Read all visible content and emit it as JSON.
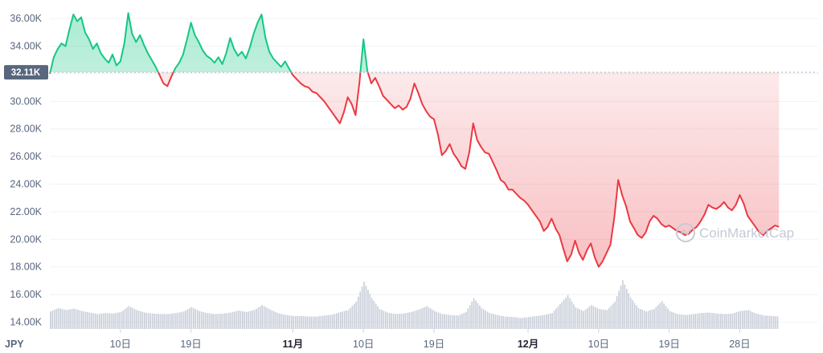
{
  "chart_data": {
    "type": "area",
    "currency": "JPY",
    "reference_value": 32110,
    "reference_label": "32.11K",
    "ylim": [
      13500,
      37000
    ],
    "yticks": [
      {
        "value": 14000,
        "label": "14.00K"
      },
      {
        "value": 16000,
        "label": "16.00K"
      },
      {
        "value": 18000,
        "label": "18.00K"
      },
      {
        "value": 20000,
        "label": "20.00K"
      },
      {
        "value": 22000,
        "label": "22.00K"
      },
      {
        "value": 24000,
        "label": "24.00K"
      },
      {
        "value": 26000,
        "label": "26.00K"
      },
      {
        "value": 28000,
        "label": "28.00K"
      },
      {
        "value": 30000,
        "label": "30.00K"
      },
      {
        "value": 32000,
        "label": "32.00K"
      },
      {
        "value": 34000,
        "label": "34.00K"
      },
      {
        "value": 36000,
        "label": "36.00K"
      }
    ],
    "xlim": [
      0,
      98
    ],
    "xticks": [
      {
        "x": 9,
        "label": "10日",
        "bold": false
      },
      {
        "x": 18,
        "label": "19日",
        "bold": false
      },
      {
        "x": 31,
        "label": "11月",
        "bold": true
      },
      {
        "x": 40,
        "label": "10日",
        "bold": false
      },
      {
        "x": 49,
        "label": "19日",
        "bold": false
      },
      {
        "x": 61,
        "label": "12月",
        "bold": true
      },
      {
        "x": 70,
        "label": "10日",
        "bold": false
      },
      {
        "x": 79,
        "label": "19日",
        "bold": false
      },
      {
        "x": 88,
        "label": "28日",
        "bold": false
      }
    ],
    "price_series": [
      [
        0,
        32000
      ],
      [
        0.5,
        33200
      ],
      [
        1,
        33800
      ],
      [
        1.5,
        34200
      ],
      [
        2,
        34000
      ],
      [
        2.5,
        35200
      ],
      [
        3,
        36300
      ],
      [
        3.5,
        35800
      ],
      [
        4,
        36100
      ],
      [
        4.5,
        35000
      ],
      [
        5,
        34500
      ],
      [
        5.5,
        33800
      ],
      [
        6,
        34200
      ],
      [
        6.5,
        33500
      ],
      [
        7,
        33100
      ],
      [
        7.5,
        32800
      ],
      [
        8,
        33400
      ],
      [
        8.5,
        32600
      ],
      [
        9,
        32900
      ],
      [
        9.5,
        34200
      ],
      [
        10,
        36400
      ],
      [
        10.5,
        34900
      ],
      [
        11,
        34300
      ],
      [
        11.5,
        34800
      ],
      [
        12,
        34100
      ],
      [
        12.5,
        33500
      ],
      [
        13,
        33000
      ],
      [
        13.5,
        32500
      ],
      [
        14,
        31900
      ],
      [
        14.5,
        31300
      ],
      [
        15,
        31100
      ],
      [
        15.5,
        31800
      ],
      [
        16,
        32400
      ],
      [
        16.5,
        32800
      ],
      [
        17,
        33400
      ],
      [
        17.5,
        34500
      ],
      [
        18,
        35700
      ],
      [
        18.5,
        34800
      ],
      [
        19,
        34300
      ],
      [
        19.5,
        33700
      ],
      [
        20,
        33300
      ],
      [
        20.5,
        33100
      ],
      [
        21,
        32800
      ],
      [
        21.5,
        33200
      ],
      [
        22,
        32700
      ],
      [
        22.5,
        33500
      ],
      [
        23,
        34600
      ],
      [
        23.5,
        33800
      ],
      [
        24,
        33300
      ],
      [
        24.5,
        33600
      ],
      [
        25,
        33100
      ],
      [
        25.5,
        33900
      ],
      [
        26,
        34900
      ],
      [
        26.5,
        35700
      ],
      [
        27,
        36300
      ],
      [
        27.5,
        34600
      ],
      [
        28,
        33600
      ],
      [
        28.5,
        33100
      ],
      [
        29,
        32800
      ],
      [
        29.5,
        32500
      ],
      [
        30,
        32900
      ],
      [
        30.5,
        32400
      ],
      [
        31,
        31900
      ],
      [
        31.5,
        31600
      ],
      [
        32,
        31300
      ],
      [
        32.5,
        31100
      ],
      [
        33,
        31000
      ],
      [
        33.5,
        30700
      ],
      [
        34,
        30600
      ],
      [
        34.5,
        30300
      ],
      [
        35,
        30000
      ],
      [
        35.5,
        29600
      ],
      [
        36,
        29200
      ],
      [
        36.5,
        28800
      ],
      [
        37,
        28400
      ],
      [
        37.5,
        29200
      ],
      [
        38,
        30300
      ],
      [
        38.5,
        29800
      ],
      [
        39,
        29000
      ],
      [
        39.5,
        31400
      ],
      [
        40,
        34500
      ],
      [
        40.5,
        32200
      ],
      [
        41,
        31300
      ],
      [
        41.5,
        31700
      ],
      [
        42,
        31100
      ],
      [
        42.5,
        30400
      ],
      [
        43,
        30100
      ],
      [
        43.5,
        29800
      ],
      [
        44,
        29500
      ],
      [
        44.5,
        29700
      ],
      [
        45,
        29400
      ],
      [
        45.5,
        29600
      ],
      [
        46,
        30200
      ],
      [
        46.5,
        31300
      ],
      [
        47,
        30600
      ],
      [
        47.5,
        29800
      ],
      [
        48,
        29300
      ],
      [
        48.5,
        28900
      ],
      [
        49,
        28700
      ],
      [
        49.5,
        27600
      ],
      [
        50,
        26100
      ],
      [
        50.5,
        26400
      ],
      [
        51,
        26900
      ],
      [
        51.5,
        26200
      ],
      [
        52,
        25800
      ],
      [
        52.5,
        25300
      ],
      [
        53,
        25100
      ],
      [
        53.5,
        26300
      ],
      [
        54,
        28400
      ],
      [
        54.5,
        27200
      ],
      [
        55,
        26700
      ],
      [
        55.5,
        26300
      ],
      [
        56,
        26200
      ],
      [
        56.5,
        25600
      ],
      [
        57,
        25000
      ],
      [
        57.5,
        24300
      ],
      [
        58,
        24100
      ],
      [
        58.5,
        23600
      ],
      [
        59,
        23600
      ],
      [
        59.5,
        23300
      ],
      [
        60,
        23000
      ],
      [
        60.5,
        22800
      ],
      [
        61,
        22500
      ],
      [
        61.5,
        22100
      ],
      [
        62,
        21700
      ],
      [
        62.5,
        21300
      ],
      [
        63,
        20600
      ],
      [
        63.5,
        20900
      ],
      [
        64,
        21500
      ],
      [
        64.5,
        20800
      ],
      [
        65,
        20300
      ],
      [
        65.5,
        19300
      ],
      [
        66,
        18400
      ],
      [
        66.5,
        18900
      ],
      [
        67,
        19900
      ],
      [
        67.5,
        19000
      ],
      [
        68,
        18500
      ],
      [
        68.5,
        19200
      ],
      [
        69,
        19700
      ],
      [
        69.5,
        18700
      ],
      [
        70,
        18000
      ],
      [
        70.5,
        18400
      ],
      [
        71,
        19000
      ],
      [
        71.5,
        19600
      ],
      [
        72,
        21600
      ],
      [
        72.5,
        24300
      ],
      [
        73,
        23200
      ],
      [
        73.5,
        22400
      ],
      [
        74,
        21300
      ],
      [
        74.5,
        20800
      ],
      [
        75,
        20300
      ],
      [
        75.5,
        20100
      ],
      [
        76,
        20500
      ],
      [
        76.5,
        21300
      ],
      [
        77,
        21700
      ],
      [
        77.5,
        21500
      ],
      [
        78,
        21100
      ],
      [
        78.5,
        20900
      ],
      [
        79,
        21000
      ],
      [
        79.5,
        20800
      ],
      [
        80,
        20600
      ],
      [
        80.5,
        20500
      ],
      [
        81,
        20300
      ],
      [
        81.5,
        20400
      ],
      [
        82,
        20700
      ],
      [
        82.5,
        20900
      ],
      [
        83,
        21300
      ],
      [
        83.5,
        21800
      ],
      [
        84,
        22500
      ],
      [
        84.5,
        22300
      ],
      [
        85,
        22200
      ],
      [
        85.5,
        22400
      ],
      [
        86,
        22700
      ],
      [
        86.5,
        22300
      ],
      [
        87,
        22100
      ],
      [
        87.5,
        22500
      ],
      [
        88,
        23200
      ],
      [
        88.5,
        22600
      ],
      [
        89,
        21700
      ],
      [
        89.5,
        21300
      ],
      [
        90,
        20900
      ],
      [
        90.5,
        20500
      ],
      [
        91,
        20300
      ],
      [
        91.5,
        20600
      ],
      [
        92,
        20800
      ],
      [
        92.5,
        21000
      ],
      [
        93,
        20900
      ]
    ],
    "volume_series": [
      [
        0,
        0.35
      ],
      [
        1,
        0.42
      ],
      [
        2,
        0.38
      ],
      [
        3,
        0.41
      ],
      [
        4,
        0.36
      ],
      [
        5,
        0.33
      ],
      [
        6,
        0.3
      ],
      [
        7,
        0.32
      ],
      [
        8,
        0.31
      ],
      [
        9,
        0.34
      ],
      [
        10,
        0.46
      ],
      [
        11,
        0.38
      ],
      [
        12,
        0.33
      ],
      [
        13,
        0.31
      ],
      [
        14,
        0.3
      ],
      [
        15,
        0.3
      ],
      [
        16,
        0.32
      ],
      [
        17,
        0.35
      ],
      [
        18,
        0.44
      ],
      [
        19,
        0.36
      ],
      [
        20,
        0.32
      ],
      [
        21,
        0.3
      ],
      [
        22,
        0.31
      ],
      [
        23,
        0.33
      ],
      [
        24,
        0.37
      ],
      [
        25,
        0.34
      ],
      [
        26,
        0.38
      ],
      [
        27,
        0.48
      ],
      [
        28,
        0.39
      ],
      [
        29,
        0.32
      ],
      [
        30,
        0.28
      ],
      [
        31,
        0.26
      ],
      [
        32,
        0.26
      ],
      [
        33,
        0.25
      ],
      [
        34,
        0.25
      ],
      [
        35,
        0.27
      ],
      [
        36,
        0.29
      ],
      [
        37,
        0.34
      ],
      [
        38,
        0.38
      ],
      [
        39,
        0.55
      ],
      [
        40,
        0.95
      ],
      [
        41,
        0.62
      ],
      [
        42,
        0.4
      ],
      [
        43,
        0.33
      ],
      [
        44,
        0.3
      ],
      [
        45,
        0.31
      ],
      [
        46,
        0.34
      ],
      [
        47,
        0.39
      ],
      [
        48,
        0.46
      ],
      [
        49,
        0.36
      ],
      [
        50,
        0.3
      ],
      [
        51,
        0.28
      ],
      [
        52,
        0.27
      ],
      [
        53,
        0.34
      ],
      [
        54,
        0.62
      ],
      [
        55,
        0.42
      ],
      [
        56,
        0.32
      ],
      [
        57,
        0.28
      ],
      [
        58,
        0.25
      ],
      [
        59,
        0.24
      ],
      [
        60,
        0.22
      ],
      [
        61,
        0.24
      ],
      [
        62,
        0.26
      ],
      [
        63,
        0.28
      ],
      [
        64,
        0.32
      ],
      [
        65,
        0.5
      ],
      [
        66,
        0.68
      ],
      [
        67,
        0.43
      ],
      [
        68,
        0.36
      ],
      [
        69,
        0.48
      ],
      [
        70,
        0.4
      ],
      [
        71,
        0.38
      ],
      [
        72,
        0.55
      ],
      [
        73,
        0.98
      ],
      [
        74,
        0.63
      ],
      [
        75,
        0.42
      ],
      [
        76,
        0.35
      ],
      [
        77,
        0.4
      ],
      [
        78,
        0.56
      ],
      [
        79,
        0.36
      ],
      [
        80,
        0.3
      ],
      [
        81,
        0.28
      ],
      [
        82,
        0.3
      ],
      [
        83,
        0.32
      ],
      [
        84,
        0.33
      ],
      [
        85,
        0.31
      ],
      [
        86,
        0.3
      ],
      [
        87,
        0.31
      ],
      [
        88,
        0.36
      ],
      [
        89,
        0.38
      ],
      [
        90,
        0.31
      ],
      [
        91,
        0.27
      ],
      [
        92,
        0.26
      ],
      [
        93,
        0.25
      ]
    ],
    "colors": {
      "up": "#16c784",
      "down": "#ea3943",
      "grid": "#eff2f5",
      "volume": "#c7cdd8",
      "badge": "#58667e"
    }
  },
  "watermark": "CoinMarketCap"
}
